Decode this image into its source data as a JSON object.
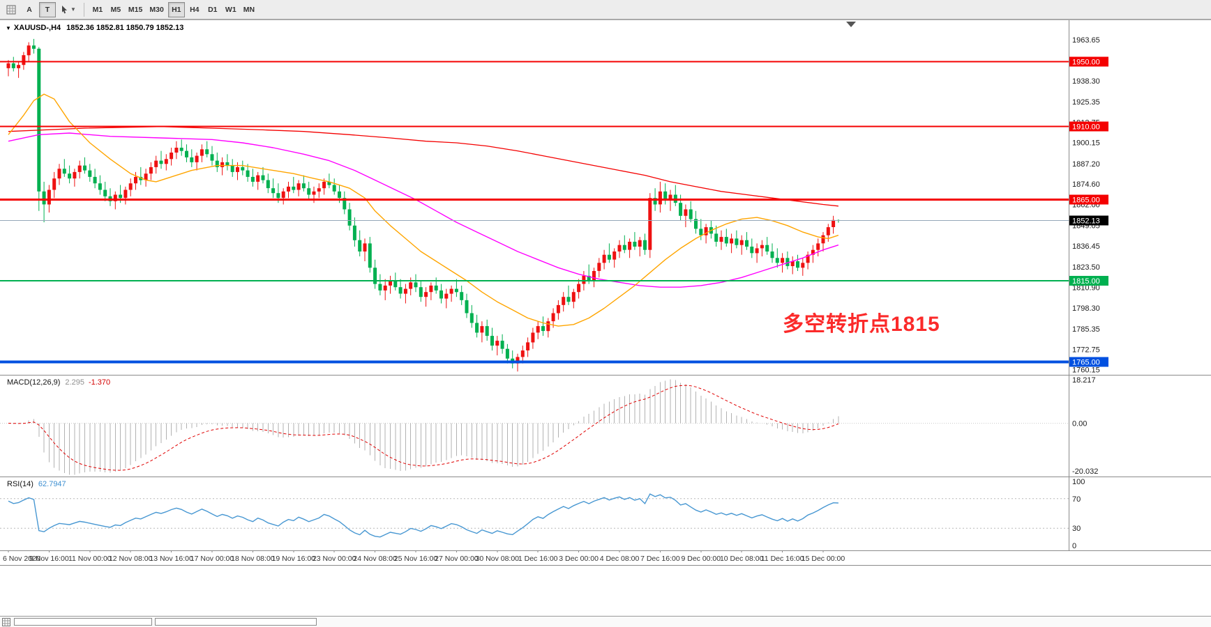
{
  "toolbar": {
    "text_tool_label": "A",
    "type_tool_label": "T",
    "timeframes": [
      "M1",
      "M5",
      "M15",
      "M30",
      "H1",
      "H4",
      "D1",
      "W1",
      "MN"
    ],
    "active_timeframe": "H1"
  },
  "chart": {
    "symbol_title": "XAUUSD-,H4",
    "ohlc_text": "1852.36 1852.81 1850.79 1852.13",
    "current_price": "1852.13",
    "current_price_line_color": "#94a7b8",
    "annotation": {
      "text": "多空转折点1815",
      "color": "#fb2a2a"
    },
    "hlines": [
      {
        "price": 1950.0,
        "label": "1950.00",
        "color": "#f40000",
        "width": 2
      },
      {
        "price": 1910.0,
        "label": "1910.00",
        "color": "#f40000",
        "width": 2
      },
      {
        "price": 1865.0,
        "label": "1865.00",
        "color": "#f40000",
        "width": 3
      },
      {
        "price": 1815.0,
        "label": "1815.00",
        "color": "#00b050",
        "width": 2
      },
      {
        "price": 1765.0,
        "label": "1765.00",
        "color": "#0050e0",
        "width": 4
      }
    ],
    "axis_labels": [
      "1963.65",
      "1938.30",
      "1925.35",
      "1912.75",
      "1900.15",
      "1887.20",
      "1874.60",
      "1862.00",
      "1849.05",
      "1836.45",
      "1823.50",
      "1810.90",
      "1798.30",
      "1785.35",
      "1772.75",
      "1760.15"
    ]
  },
  "macd": {
    "header_label": "MACD(12,26,9)",
    "value_main": "2.295",
    "value_signal": "-1.370",
    "axis": [
      "18.217",
      "0.00",
      "-20.032"
    ],
    "range": [
      -20.032,
      18.217
    ],
    "hist_color": "#b2b2b2",
    "signal_color": "#e00000"
  },
  "rsi": {
    "header_label": "RSI(14)",
    "value": "62.7947",
    "axis": [
      "100",
      "70",
      "30",
      "0"
    ],
    "levels": [
      70,
      30
    ],
    "range": [
      0,
      100
    ],
    "line_color": "#4797d2",
    "level_color": "#b8b8b8"
  },
  "chart_data": {
    "type": "candlestick",
    "symbol": "XAUUSD",
    "timeframe": "H4",
    "up_color": "#ee1111",
    "down_color": "#00b050",
    "price_range": [
      1757,
      1976
    ],
    "time_labels": [
      "6 Nov 2020",
      "9 Nov 16:00",
      "11 Nov 00:00",
      "12 Nov 08:00",
      "13 Nov 16:00",
      "17 Nov 00:00",
      "18 Nov 08:00",
      "19 Nov 16:00",
      "23 Nov 00:00",
      "24 Nov 08:00",
      "25 Nov 16:00",
      "27 Nov 00:00",
      "30 Nov 08:00",
      "1 Dec 16:00",
      "3 Dec 00:00",
      "4 Dec 08:00",
      "7 Dec 16:00",
      "9 Dec 00:00",
      "10 Dec 08:00",
      "11 Dec 16:00",
      "15 Dec 00:00"
    ],
    "ohlc": [
      [
        1946,
        1951,
        1941,
        1949
      ],
      [
        1949,
        1953,
        1944,
        1946
      ],
      [
        1946,
        1950,
        1940,
        1948
      ],
      [
        1948,
        1956,
        1945,
        1954
      ],
      [
        1954,
        1962,
        1950,
        1960
      ],
      [
        1960,
        1964,
        1955,
        1958
      ],
      [
        1958,
        1959,
        1858,
        1870
      ],
      [
        1870,
        1876,
        1851,
        1862
      ],
      [
        1862,
        1874,
        1857,
        1871
      ],
      [
        1871,
        1882,
        1866,
        1878
      ],
      [
        1878,
        1887,
        1874,
        1884
      ],
      [
        1884,
        1890,
        1879,
        1881
      ],
      [
        1881,
        1886,
        1875,
        1878
      ],
      [
        1878,
        1884,
        1873,
        1882
      ],
      [
        1882,
        1889,
        1878,
        1886
      ],
      [
        1886,
        1891,
        1881,
        1883
      ],
      [
        1883,
        1887,
        1876,
        1879
      ],
      [
        1879,
        1884,
        1872,
        1875
      ],
      [
        1875,
        1880,
        1868,
        1871
      ],
      [
        1871,
        1876,
        1864,
        1867
      ],
      [
        1867,
        1872,
        1861,
        1864
      ],
      [
        1864,
        1870,
        1859,
        1868
      ],
      [
        1868,
        1874,
        1863,
        1866
      ],
      [
        1866,
        1873,
        1862,
        1871
      ],
      [
        1871,
        1878,
        1867,
        1875
      ],
      [
        1875,
        1882,
        1871,
        1879
      ],
      [
        1879,
        1885,
        1874,
        1877
      ],
      [
        1877,
        1884,
        1873,
        1881
      ],
      [
        1881,
        1888,
        1877,
        1885
      ],
      [
        1885,
        1892,
        1881,
        1889
      ],
      [
        1889,
        1895,
        1884,
        1887
      ],
      [
        1887,
        1893,
        1883,
        1890
      ],
      [
        1890,
        1897,
        1886,
        1894
      ],
      [
        1894,
        1901,
        1890,
        1897
      ],
      [
        1897,
        1902,
        1892,
        1895
      ],
      [
        1895,
        1899,
        1888,
        1891
      ],
      [
        1891,
        1896,
        1885,
        1888
      ],
      [
        1888,
        1894,
        1883,
        1892
      ],
      [
        1892,
        1899,
        1888,
        1896
      ],
      [
        1896,
        1901,
        1891,
        1893
      ],
      [
        1893,
        1898,
        1886,
        1889
      ],
      [
        1889,
        1894,
        1882,
        1885
      ],
      [
        1885,
        1891,
        1880,
        1888
      ],
      [
        1888,
        1893,
        1883,
        1886
      ],
      [
        1886,
        1890,
        1879,
        1882
      ],
      [
        1882,
        1888,
        1877,
        1885
      ],
      [
        1885,
        1889,
        1880,
        1883
      ],
      [
        1883,
        1887,
        1876,
        1879
      ],
      [
        1879,
        1884,
        1873,
        1876
      ],
      [
        1876,
        1882,
        1871,
        1880
      ],
      [
        1880,
        1885,
        1875,
        1877
      ],
      [
        1877,
        1881,
        1869,
        1872
      ],
      [
        1872,
        1878,
        1866,
        1869
      ],
      [
        1869,
        1875,
        1863,
        1866
      ],
      [
        1866,
        1872,
        1862,
        1870
      ],
      [
        1870,
        1876,
        1866,
        1873
      ],
      [
        1873,
        1879,
        1869,
        1871
      ],
      [
        1871,
        1877,
        1867,
        1875
      ],
      [
        1875,
        1880,
        1870,
        1872
      ],
      [
        1872,
        1876,
        1865,
        1868
      ],
      [
        1868,
        1873,
        1863,
        1870
      ],
      [
        1870,
        1875,
        1866,
        1872
      ],
      [
        1872,
        1878,
        1868,
        1876
      ],
      [
        1876,
        1881,
        1872,
        1874
      ],
      [
        1874,
        1878,
        1868,
        1870
      ],
      [
        1870,
        1874,
        1863,
        1866
      ],
      [
        1866,
        1870,
        1856,
        1859
      ],
      [
        1859,
        1863,
        1846,
        1849
      ],
      [
        1849,
        1854,
        1836,
        1840
      ],
      [
        1840,
        1846,
        1830,
        1833
      ],
      [
        1833,
        1841,
        1827,
        1838
      ],
      [
        1838,
        1842,
        1820,
        1823
      ],
      [
        1823,
        1828,
        1810,
        1813
      ],
      [
        1813,
        1819,
        1806,
        1809
      ],
      [
        1809,
        1816,
        1803,
        1812
      ],
      [
        1812,
        1818,
        1807,
        1815
      ],
      [
        1815,
        1820,
        1809,
        1811
      ],
      [
        1811,
        1816,
        1804,
        1807
      ],
      [
        1807,
        1813,
        1801,
        1810
      ],
      [
        1810,
        1817,
        1806,
        1814
      ],
      [
        1814,
        1819,
        1808,
        1811
      ],
      [
        1811,
        1815,
        1802,
        1805
      ],
      [
        1805,
        1811,
        1799,
        1808
      ],
      [
        1808,
        1814,
        1803,
        1812
      ],
      [
        1812,
        1817,
        1807,
        1809
      ],
      [
        1809,
        1813,
        1801,
        1804
      ],
      [
        1804,
        1810,
        1798,
        1807
      ],
      [
        1807,
        1812,
        1802,
        1810
      ],
      [
        1810,
        1816,
        1805,
        1808
      ],
      [
        1808,
        1812,
        1800,
        1803
      ],
      [
        1803,
        1807,
        1792,
        1795
      ],
      [
        1795,
        1800,
        1786,
        1789
      ],
      [
        1789,
        1794,
        1780,
        1783
      ],
      [
        1783,
        1790,
        1777,
        1787
      ],
      [
        1787,
        1791,
        1778,
        1781
      ],
      [
        1781,
        1786,
        1772,
        1775
      ],
      [
        1775,
        1781,
        1769,
        1778
      ],
      [
        1778,
        1782,
        1770,
        1773
      ],
      [
        1773,
        1776,
        1764,
        1767
      ],
      [
        1767,
        1772,
        1761,
        1764
      ],
      [
        1764,
        1770,
        1759,
        1768
      ],
      [
        1768,
        1775,
        1764,
        1772
      ],
      [
        1772,
        1780,
        1768,
        1777
      ],
      [
        1777,
        1786,
        1773,
        1783
      ],
      [
        1783,
        1790,
        1779,
        1787
      ],
      [
        1787,
        1793,
        1781,
        1784
      ],
      [
        1784,
        1792,
        1780,
        1790
      ],
      [
        1790,
        1798,
        1786,
        1795
      ],
      [
        1795,
        1803,
        1791,
        1800
      ],
      [
        1800,
        1808,
        1796,
        1805
      ],
      [
        1805,
        1812,
        1800,
        1802
      ],
      [
        1802,
        1810,
        1798,
        1808
      ],
      [
        1808,
        1816,
        1804,
        1813
      ],
      [
        1813,
        1821,
        1809,
        1818
      ],
      [
        1818,
        1825,
        1813,
        1815
      ],
      [
        1815,
        1823,
        1811,
        1821
      ],
      [
        1821,
        1829,
        1817,
        1826
      ],
      [
        1826,
        1834,
        1822,
        1831
      ],
      [
        1831,
        1838,
        1826,
        1828
      ],
      [
        1828,
        1835,
        1823,
        1833
      ],
      [
        1833,
        1840,
        1829,
        1837
      ],
      [
        1837,
        1843,
        1832,
        1834
      ],
      [
        1834,
        1841,
        1829,
        1839
      ],
      [
        1839,
        1845,
        1834,
        1836
      ],
      [
        1836,
        1842,
        1830,
        1840
      ],
      [
        1840,
        1844,
        1831,
        1834
      ],
      [
        1834,
        1869,
        1829,
        1866
      ],
      [
        1866,
        1872,
        1858,
        1862
      ],
      [
        1862,
        1876,
        1857,
        1870
      ],
      [
        1870,
        1875,
        1862,
        1865
      ],
      [
        1865,
        1871,
        1858,
        1868
      ],
      [
        1868,
        1874,
        1861,
        1863
      ],
      [
        1863,
        1868,
        1852,
        1855
      ],
      [
        1855,
        1862,
        1848,
        1859
      ],
      [
        1859,
        1864,
        1851,
        1853
      ],
      [
        1853,
        1858,
        1844,
        1847
      ],
      [
        1847,
        1853,
        1840,
        1843
      ],
      [
        1843,
        1850,
        1838,
        1848
      ],
      [
        1848,
        1852,
        1841,
        1844
      ],
      [
        1844,
        1849,
        1836,
        1839
      ],
      [
        1839,
        1846,
        1834,
        1842
      ],
      [
        1842,
        1847,
        1836,
        1838
      ],
      [
        1838,
        1844,
        1832,
        1841
      ],
      [
        1841,
        1846,
        1835,
        1837
      ],
      [
        1837,
        1843,
        1831,
        1840
      ],
      [
        1840,
        1845,
        1834,
        1836
      ],
      [
        1836,
        1841,
        1829,
        1832
      ],
      [
        1832,
        1838,
        1826,
        1835
      ],
      [
        1835,
        1840,
        1830,
        1837
      ],
      [
        1837,
        1842,
        1831,
        1833
      ],
      [
        1833,
        1838,
        1826,
        1829
      ],
      [
        1829,
        1835,
        1823,
        1826
      ],
      [
        1826,
        1832,
        1820,
        1829
      ],
      [
        1829,
        1833,
        1822,
        1824
      ],
      [
        1824,
        1830,
        1819,
        1827
      ],
      [
        1827,
        1831,
        1821,
        1823
      ],
      [
        1823,
        1829,
        1818,
        1826
      ],
      [
        1826,
        1833,
        1822,
        1831
      ],
      [
        1831,
        1837,
        1826,
        1834
      ],
      [
        1834,
        1841,
        1830,
        1838
      ],
      [
        1838,
        1845,
        1833,
        1843
      ],
      [
        1843,
        1850,
        1839,
        1848
      ],
      [
        1848,
        1855,
        1844,
        1852.4
      ],
      [
        1852.36,
        1852.81,
        1850.79,
        1852.13
      ]
    ],
    "ma_orange": [
      [
        0,
        1905
      ],
      [
        3,
        1917
      ],
      [
        5,
        1926
      ],
      [
        7,
        1930
      ],
      [
        9,
        1927
      ],
      [
        12,
        1913
      ],
      [
        16,
        1900
      ],
      [
        20,
        1890
      ],
      [
        24,
        1881
      ],
      [
        27,
        1877
      ],
      [
        29,
        1876
      ],
      [
        32,
        1879
      ],
      [
        36,
        1883
      ],
      [
        41,
        1886
      ],
      [
        46,
        1886
      ],
      [
        52,
        1883
      ],
      [
        56,
        1881
      ],
      [
        60,
        1878
      ],
      [
        63,
        1876
      ],
      [
        67,
        1872
      ],
      [
        70,
        1866
      ],
      [
        72,
        1858
      ],
      [
        75,
        1849
      ],
      [
        78,
        1841
      ],
      [
        81,
        1833
      ],
      [
        84,
        1827
      ],
      [
        87,
        1821
      ],
      [
        90,
        1815
      ],
      [
        93,
        1808
      ],
      [
        96,
        1802
      ],
      [
        99,
        1797
      ],
      [
        102,
        1792
      ],
      [
        105,
        1789
      ],
      [
        108,
        1787
      ],
      [
        111,
        1788
      ],
      [
        114,
        1792
      ],
      [
        117,
        1798
      ],
      [
        120,
        1805
      ],
      [
        123,
        1812
      ],
      [
        126,
        1820
      ],
      [
        129,
        1828
      ],
      [
        132,
        1835
      ],
      [
        135,
        1841
      ],
      [
        138,
        1846
      ],
      [
        141,
        1850
      ],
      [
        144,
        1853
      ],
      [
        147,
        1854
      ],
      [
        150,
        1852
      ],
      [
        153,
        1849
      ],
      [
        156,
        1845
      ],
      [
        159,
        1842
      ],
      [
        161,
        1841
      ],
      [
        163,
        1843
      ]
    ],
    "ma_magenta": [
      [
        0,
        1901
      ],
      [
        6,
        1905
      ],
      [
        12,
        1906
      ],
      [
        20,
        1904
      ],
      [
        30,
        1903
      ],
      [
        40,
        1902
      ],
      [
        46,
        1900
      ],
      [
        52,
        1897
      ],
      [
        58,
        1893
      ],
      [
        63,
        1889
      ],
      [
        68,
        1883
      ],
      [
        72,
        1877
      ],
      [
        76,
        1871
      ],
      [
        80,
        1865
      ],
      [
        84,
        1858
      ],
      [
        88,
        1851
      ],
      [
        92,
        1845
      ],
      [
        96,
        1839
      ],
      [
        100,
        1833
      ],
      [
        104,
        1828
      ],
      [
        108,
        1823
      ],
      [
        112,
        1819
      ],
      [
        116,
        1816
      ],
      [
        120,
        1814
      ],
      [
        124,
        1812
      ],
      [
        128,
        1811
      ],
      [
        132,
        1811
      ],
      [
        136,
        1812
      ],
      [
        140,
        1814
      ],
      [
        144,
        1817
      ],
      [
        148,
        1821
      ],
      [
        152,
        1825
      ],
      [
        156,
        1829
      ],
      [
        160,
        1834
      ],
      [
        163,
        1837
      ]
    ],
    "ma_red": [
      [
        0,
        1907
      ],
      [
        15,
        1909
      ],
      [
        30,
        1910
      ],
      [
        40,
        1909
      ],
      [
        50,
        1908
      ],
      [
        58,
        1907
      ],
      [
        67,
        1905
      ],
      [
        75,
        1903
      ],
      [
        82,
        1901
      ],
      [
        88,
        1900
      ],
      [
        94,
        1898
      ],
      [
        100,
        1895
      ],
      [
        105,
        1892
      ],
      [
        110,
        1889
      ],
      [
        115,
        1886
      ],
      [
        120,
        1883
      ],
      [
        125,
        1880
      ],
      [
        130,
        1876
      ],
      [
        135,
        1873
      ],
      [
        140,
        1870
      ],
      [
        145,
        1868
      ],
      [
        150,
        1866
      ],
      [
        155,
        1864
      ],
      [
        160,
        1862
      ],
      [
        163,
        1861
      ]
    ],
    "ma_colors": {
      "fast": "#ffa500",
      "medium": "#ff00ff",
      "slow": "#f40000"
    }
  }
}
